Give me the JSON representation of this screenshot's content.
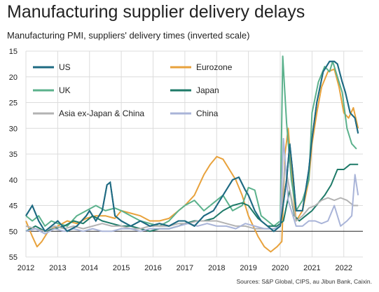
{
  "title": "Manufacturing supplier delivery delays",
  "subtitle": "Manufacturing PMI, suppliers' delivery times (inverted scale)",
  "source": "Sources: S&P Global, CIPS, au Jibun Bank, Caixin.",
  "chart_data": {
    "type": "line",
    "title": "Manufacturing supplier delivery delays",
    "ylabel": "Manufacturing PMI, suppliers' delivery times (inverted scale)",
    "xlabel": "",
    "xlim": [
      2012,
      2022.6
    ],
    "ylim": [
      15,
      55
    ],
    "y_inverted": true,
    "x_ticks": [
      "2012",
      "2013",
      "2014",
      "2015",
      "2016",
      "2017",
      "2018",
      "2019",
      "2020",
      "2021",
      "2022"
    ],
    "y_ticks": [
      15,
      20,
      25,
      30,
      35,
      40,
      45,
      50,
      55
    ],
    "grid": true,
    "legend_position": "top-left",
    "series": [
      {
        "name": "US",
        "color": "#1e6a82",
        "points": [
          [
            2012.0,
            47
          ],
          [
            2012.2,
            45
          ],
          [
            2012.4,
            48
          ],
          [
            2012.6,
            50
          ],
          [
            2012.8,
            49
          ],
          [
            2013.0,
            48
          ],
          [
            2013.3,
            50
          ],
          [
            2013.6,
            49
          ],
          [
            2013.9,
            47
          ],
          [
            2014.0,
            46
          ],
          [
            2014.2,
            48
          ],
          [
            2014.4,
            46
          ],
          [
            2014.55,
            41
          ],
          [
            2014.65,
            40.5
          ],
          [
            2014.8,
            47
          ],
          [
            2015.0,
            48
          ],
          [
            2015.3,
            49
          ],
          [
            2015.6,
            48
          ],
          [
            2015.9,
            49
          ],
          [
            2016.2,
            48.5
          ],
          [
            2016.5,
            49
          ],
          [
            2016.8,
            48
          ],
          [
            2017.0,
            48
          ],
          [
            2017.3,
            49
          ],
          [
            2017.6,
            47
          ],
          [
            2017.9,
            46
          ],
          [
            2018.0,
            45
          ],
          [
            2018.3,
            42
          ],
          [
            2018.5,
            40
          ],
          [
            2018.7,
            39.5
          ],
          [
            2018.9,
            42
          ],
          [
            2019.0,
            43
          ],
          [
            2019.2,
            46
          ],
          [
            2019.4,
            48
          ],
          [
            2019.6,
            49
          ],
          [
            2019.8,
            50
          ],
          [
            2020.0,
            49
          ],
          [
            2020.2,
            40
          ],
          [
            2020.3,
            33
          ],
          [
            2020.4,
            39
          ],
          [
            2020.5,
            46
          ],
          [
            2020.7,
            46
          ],
          [
            2020.9,
            38
          ],
          [
            2021.0,
            32
          ],
          [
            2021.15,
            25
          ],
          [
            2021.35,
            19
          ],
          [
            2021.55,
            17
          ],
          [
            2021.7,
            17
          ],
          [
            2021.8,
            17.5
          ],
          [
            2021.95,
            21
          ],
          [
            2022.05,
            23
          ],
          [
            2022.2,
            27
          ],
          [
            2022.35,
            28
          ],
          [
            2022.45,
            31
          ]
        ]
      },
      {
        "name": "Eurozone",
        "color": "#e8a23c",
        "points": [
          [
            2012.0,
            48
          ],
          [
            2012.2,
            51
          ],
          [
            2012.35,
            53
          ],
          [
            2012.5,
            52
          ],
          [
            2012.7,
            50
          ],
          [
            2013.0,
            49
          ],
          [
            2013.3,
            48
          ],
          [
            2013.6,
            48.5
          ],
          [
            2013.9,
            47.5
          ],
          [
            2014.2,
            47
          ],
          [
            2014.5,
            47
          ],
          [
            2014.8,
            47.5
          ],
          [
            2015.0,
            46
          ],
          [
            2015.3,
            46.5
          ],
          [
            2015.6,
            47
          ],
          [
            2015.9,
            48
          ],
          [
            2016.2,
            48
          ],
          [
            2016.5,
            47.5
          ],
          [
            2016.8,
            46
          ],
          [
            2017.0,
            45
          ],
          [
            2017.3,
            43
          ],
          [
            2017.6,
            39
          ],
          [
            2017.8,
            37
          ],
          [
            2018.0,
            35.5
          ],
          [
            2018.2,
            36
          ],
          [
            2018.4,
            38
          ],
          [
            2018.6,
            40
          ],
          [
            2018.8,
            43
          ],
          [
            2019.0,
            47
          ],
          [
            2019.3,
            51
          ],
          [
            2019.5,
            53
          ],
          [
            2019.7,
            54
          ],
          [
            2019.9,
            53
          ],
          [
            2020.05,
            52
          ],
          [
            2020.15,
            35
          ],
          [
            2020.25,
            30
          ],
          [
            2020.4,
            42
          ],
          [
            2020.5,
            48
          ],
          [
            2020.7,
            46
          ],
          [
            2020.9,
            40
          ],
          [
            2021.0,
            33
          ],
          [
            2021.15,
            27
          ],
          [
            2021.3,
            22
          ],
          [
            2021.5,
            19
          ],
          [
            2021.7,
            18.5
          ],
          [
            2021.85,
            22
          ],
          [
            2022.0,
            27
          ],
          [
            2022.15,
            28
          ],
          [
            2022.3,
            26
          ],
          [
            2022.45,
            30
          ]
        ]
      },
      {
        "name": "UK",
        "color": "#5bb18c",
        "points": [
          [
            2012.0,
            47
          ],
          [
            2012.2,
            48
          ],
          [
            2012.4,
            47
          ],
          [
            2012.6,
            49
          ],
          [
            2012.8,
            48
          ],
          [
            2013.0,
            48.5
          ],
          [
            2013.3,
            49
          ],
          [
            2013.6,
            47
          ],
          [
            2013.9,
            46
          ],
          [
            2014.2,
            45
          ],
          [
            2014.5,
            46
          ],
          [
            2014.8,
            45.5
          ],
          [
            2015.0,
            46
          ],
          [
            2015.3,
            47
          ],
          [
            2015.6,
            48
          ],
          [
            2015.9,
            48.5
          ],
          [
            2016.2,
            49
          ],
          [
            2016.5,
            48
          ],
          [
            2016.8,
            46
          ],
          [
            2017.0,
            45
          ],
          [
            2017.3,
            44
          ],
          [
            2017.6,
            46
          ],
          [
            2017.9,
            44.5
          ],
          [
            2018.2,
            43
          ],
          [
            2018.5,
            46
          ],
          [
            2018.8,
            45
          ],
          [
            2019.0,
            41.5
          ],
          [
            2019.2,
            42
          ],
          [
            2019.4,
            47
          ],
          [
            2019.6,
            48
          ],
          [
            2019.8,
            49
          ],
          [
            2020.0,
            48
          ],
          [
            2020.08,
            16
          ],
          [
            2020.2,
            29
          ],
          [
            2020.35,
            40
          ],
          [
            2020.5,
            46
          ],
          [
            2020.7,
            44
          ],
          [
            2020.9,
            40
          ],
          [
            2021.0,
            27
          ],
          [
            2021.2,
            21
          ],
          [
            2021.4,
            18
          ],
          [
            2021.55,
            19
          ],
          [
            2021.65,
            17
          ],
          [
            2021.8,
            20
          ],
          [
            2021.95,
            23
          ],
          [
            2022.1,
            30
          ],
          [
            2022.25,
            33
          ],
          [
            2022.4,
            34
          ]
        ]
      },
      {
        "name": "Japan",
        "color": "#1e7a68",
        "points": [
          [
            2012.0,
            50
          ],
          [
            2012.3,
            49
          ],
          [
            2012.6,
            50
          ],
          [
            2012.9,
            49.5
          ],
          [
            2013.2,
            49
          ],
          [
            2013.5,
            48
          ],
          [
            2013.8,
            48.5
          ],
          [
            2014.1,
            47
          ],
          [
            2014.4,
            48
          ],
          [
            2014.7,
            48.5
          ],
          [
            2015.0,
            49
          ],
          [
            2015.3,
            49
          ],
          [
            2015.6,
            49.5
          ],
          [
            2015.9,
            50
          ],
          [
            2016.2,
            49.5
          ],
          [
            2016.5,
            49.5
          ],
          [
            2016.8,
            49
          ],
          [
            2017.0,
            48.5
          ],
          [
            2017.3,
            48
          ],
          [
            2017.6,
            48
          ],
          [
            2017.9,
            47.5
          ],
          [
            2018.2,
            46
          ],
          [
            2018.5,
            45
          ],
          [
            2018.8,
            44.5
          ],
          [
            2019.0,
            45
          ],
          [
            2019.3,
            47.5
          ],
          [
            2019.6,
            49
          ],
          [
            2019.9,
            49
          ],
          [
            2020.1,
            48
          ],
          [
            2020.3,
            42
          ],
          [
            2020.45,
            47
          ],
          [
            2020.6,
            48
          ],
          [
            2020.8,
            47
          ],
          [
            2021.0,
            46
          ],
          [
            2021.2,
            44.5
          ],
          [
            2021.4,
            43
          ],
          [
            2021.6,
            41
          ],
          [
            2021.8,
            38
          ],
          [
            2022.0,
            38
          ],
          [
            2022.2,
            37
          ],
          [
            2022.45,
            37
          ]
        ]
      },
      {
        "name": "Asia ex-Japan & China",
        "color": "#b3b3b3",
        "points": [
          [
            2012.0,
            49
          ],
          [
            2012.3,
            49.5
          ],
          [
            2012.6,
            50
          ],
          [
            2012.9,
            49
          ],
          [
            2013.2,
            49.5
          ],
          [
            2013.5,
            49
          ],
          [
            2013.8,
            49.5
          ],
          [
            2014.1,
            49
          ],
          [
            2014.4,
            48.5
          ],
          [
            2014.7,
            49
          ],
          [
            2015.0,
            49
          ],
          [
            2015.3,
            49.5
          ],
          [
            2015.6,
            49.5
          ],
          [
            2015.9,
            49
          ],
          [
            2016.2,
            49
          ],
          [
            2016.5,
            49
          ],
          [
            2016.8,
            48.5
          ],
          [
            2017.1,
            48.5
          ],
          [
            2017.4,
            48
          ],
          [
            2017.7,
            48
          ],
          [
            2018.0,
            48
          ],
          [
            2018.3,
            48.5
          ],
          [
            2018.6,
            49
          ],
          [
            2018.9,
            49
          ],
          [
            2019.2,
            49.5
          ],
          [
            2019.5,
            49.5
          ],
          [
            2019.8,
            49.5
          ],
          [
            2020.0,
            49
          ],
          [
            2020.15,
            37
          ],
          [
            2020.3,
            42
          ],
          [
            2020.5,
            48
          ],
          [
            2020.7,
            47
          ],
          [
            2020.9,
            45.5
          ],
          [
            2021.1,
            45
          ],
          [
            2021.3,
            44
          ],
          [
            2021.5,
            43.5
          ],
          [
            2021.7,
            44
          ],
          [
            2021.9,
            43.5
          ],
          [
            2022.1,
            44
          ],
          [
            2022.3,
            45
          ],
          [
            2022.45,
            45
          ]
        ]
      },
      {
        "name": "China",
        "color": "#a9b4d8",
        "points": [
          [
            2012.0,
            50
          ],
          [
            2012.3,
            49.5
          ],
          [
            2012.6,
            50.5
          ],
          [
            2012.9,
            49.5
          ],
          [
            2013.2,
            50
          ],
          [
            2013.5,
            49.5
          ],
          [
            2013.8,
            50
          ],
          [
            2014.1,
            49.5
          ],
          [
            2014.4,
            50
          ],
          [
            2014.7,
            50
          ],
          [
            2015.0,
            49.5
          ],
          [
            2015.3,
            49.5
          ],
          [
            2015.6,
            50
          ],
          [
            2015.9,
            49.5
          ],
          [
            2016.2,
            49.5
          ],
          [
            2016.5,
            49.5
          ],
          [
            2016.8,
            49
          ],
          [
            2017.1,
            48.5
          ],
          [
            2017.4,
            49
          ],
          [
            2017.7,
            48.5
          ],
          [
            2018.0,
            49
          ],
          [
            2018.3,
            49
          ],
          [
            2018.6,
            49.5
          ],
          [
            2018.9,
            48.5
          ],
          [
            2019.2,
            49
          ],
          [
            2019.5,
            49.5
          ],
          [
            2019.8,
            49.5
          ],
          [
            2020.0,
            49
          ],
          [
            2020.1,
            32
          ],
          [
            2020.25,
            44
          ],
          [
            2020.5,
            49
          ],
          [
            2020.7,
            49
          ],
          [
            2020.9,
            48
          ],
          [
            2021.1,
            48
          ],
          [
            2021.3,
            48.5
          ],
          [
            2021.5,
            48
          ],
          [
            2021.7,
            45
          ],
          [
            2021.9,
            49
          ],
          [
            2022.1,
            48
          ],
          [
            2022.25,
            47
          ],
          [
            2022.35,
            39
          ],
          [
            2022.45,
            43
          ]
        ]
      }
    ]
  }
}
